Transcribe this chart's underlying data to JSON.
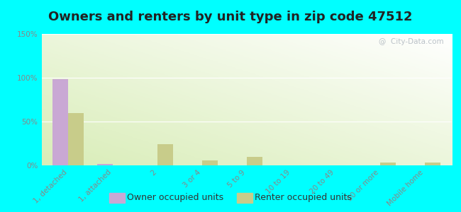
{
  "title": "Owners and renters by unit type in zip code 47512",
  "categories": [
    "1, detached",
    "1, attached",
    "2",
    "3 or 4",
    "5 to 9",
    "10 to 19",
    "20 to 49",
    "50 or more",
    "Mobile home"
  ],
  "owner_values": [
    98,
    2,
    0,
    0,
    0,
    0,
    0,
    0,
    0
  ],
  "renter_values": [
    60,
    0,
    24,
    6,
    10,
    0,
    0,
    3,
    3
  ],
  "owner_color": "#c9a8d4",
  "renter_color": "#c8cc8a",
  "bg_figure": "#00ffff",
  "ylim": [
    0,
    150
  ],
  "yticks": [
    0,
    50,
    100,
    150
  ],
  "ytick_labels": [
    "0%",
    "50%",
    "100%",
    "150%"
  ],
  "bar_width": 0.35,
  "legend_owner": "Owner occupied units",
  "legend_renter": "Renter occupied units",
  "title_fontsize": 13,
  "tick_fontsize": 7.5,
  "legend_fontsize": 9,
  "watermark": "@  City-Data.com"
}
